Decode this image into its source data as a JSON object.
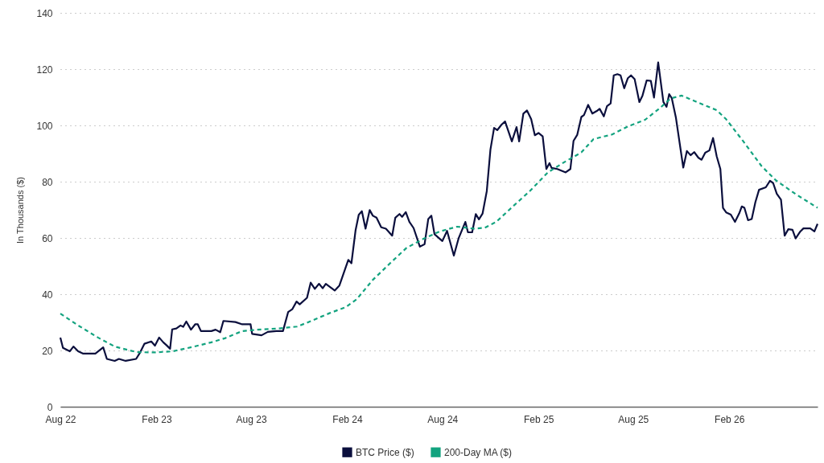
{
  "chart_data": {
    "type": "line",
    "ylabel": "In Thousands ($)",
    "legend": "bottom",
    "grid": "y",
    "xlim": [
      "2022-08-01",
      "2026-07-20"
    ],
    "xticks": [
      {
        "value": "2022-08-01",
        "label": "Aug 22"
      },
      {
        "value": "2023-02-01",
        "label": "Feb 23"
      },
      {
        "value": "2023-08-01",
        "label": "Aug 23"
      },
      {
        "value": "2024-02-01",
        "label": "Feb 24"
      },
      {
        "value": "2024-08-01",
        "label": "Aug 24"
      },
      {
        "value": "2025-02-01",
        "label": "Feb 25"
      },
      {
        "value": "2025-08-01",
        "label": "Aug 25"
      },
      {
        "value": "2026-02-01",
        "label": "Feb 26"
      }
    ],
    "ylim": [
      0,
      140
    ],
    "yticks": [
      0,
      20,
      40,
      60,
      80,
      100,
      120,
      140
    ],
    "series": [
      {
        "name": "BTC Price ($)",
        "color": "#0b0f3d",
        "line_style": "solid",
        "x": [
          "2022-08-01",
          "2022-08-06",
          "2022-08-19",
          "2022-08-26",
          "2022-09-04",
          "2022-09-13",
          "2022-10-07",
          "2022-10-22",
          "2022-10-29",
          "2022-11-13",
          "2022-11-21",
          "2022-12-04",
          "2022-12-24",
          "2023-01-01",
          "2023-01-09",
          "2023-01-22",
          "2023-01-29",
          "2023-02-06",
          "2023-02-14",
          "2023-02-20",
          "2023-02-27",
          "2023-03-03",
          "2023-03-11",
          "2023-03-19",
          "2023-03-24",
          "2023-03-30",
          "2023-04-08",
          "2023-04-16",
          "2023-04-21",
          "2023-04-27",
          "2023-05-17",
          "2023-05-25",
          "2023-06-03",
          "2023-06-09",
          "2023-07-02",
          "2023-07-15",
          "2023-07-31",
          "2023-08-03",
          "2023-08-21",
          "2023-09-02",
          "2023-09-18",
          "2023-10-01",
          "2023-10-11",
          "2023-10-19",
          "2023-10-27",
          "2023-11-02",
          "2023-11-16",
          "2023-11-23",
          "2023-12-01",
          "2023-12-09",
          "2023-12-16",
          "2023-12-22",
          "2024-01-08",
          "2024-01-17",
          "2024-02-03",
          "2024-02-09",
          "2024-02-17",
          "2024-02-23",
          "2024-02-29",
          "2024-03-07",
          "2024-03-15",
          "2024-03-21",
          "2024-03-28",
          "2024-04-06",
          "2024-04-15",
          "2024-04-27",
          "2024-05-03",
          "2024-05-11",
          "2024-05-16",
          "2024-05-23",
          "2024-05-30",
          "2024-06-07",
          "2024-06-19",
          "2024-06-28",
          "2024-07-05",
          "2024-07-11",
          "2024-07-17",
          "2024-08-01",
          "2024-08-10",
          "2024-08-23",
          "2024-09-01",
          "2024-09-14",
          "2024-09-19",
          "2024-09-27",
          "2024-10-04",
          "2024-10-10",
          "2024-10-17",
          "2024-10-25",
          "2024-11-01",
          "2024-11-08",
          "2024-11-14",
          "2024-11-22",
          "2024-11-29",
          "2024-12-12",
          "2024-12-21",
          "2024-12-26",
          "2025-01-03",
          "2025-01-10",
          "2025-01-18",
          "2025-01-25",
          "2025-02-01",
          "2025-02-09",
          "2025-02-16",
          "2025-02-22",
          "2025-02-26",
          "2025-03-09",
          "2025-03-25",
          "2025-04-03",
          "2025-04-09",
          "2025-04-16",
          "2025-04-24",
          "2025-04-29",
          "2025-05-07",
          "2025-05-15",
          "2025-05-25",
          "2025-05-29",
          "2025-06-06",
          "2025-06-12",
          "2025-06-19",
          "2025-06-25",
          "2025-07-02",
          "2025-07-08",
          "2025-07-15",
          "2025-07-22",
          "2025-07-28",
          "2025-08-04",
          "2025-08-13",
          "2025-08-19",
          "2025-08-27",
          "2025-09-04",
          "2025-09-10",
          "2025-09-18",
          "2025-09-28",
          "2025-10-04",
          "2025-10-09",
          "2025-10-14",
          "2025-10-22",
          "2025-11-05",
          "2025-11-12",
          "2025-11-19",
          "2025-11-26",
          "2025-12-04",
          "2025-12-10",
          "2025-12-17",
          "2025-12-25",
          "2026-01-01",
          "2026-01-08",
          "2026-01-15",
          "2026-01-20",
          "2026-01-26",
          "2026-02-04",
          "2026-02-12",
          "2026-02-20",
          "2026-02-25",
          "2026-03-02",
          "2026-03-09",
          "2026-03-16",
          "2026-03-23",
          "2026-03-30",
          "2026-04-12",
          "2026-04-20",
          "2026-04-26",
          "2026-05-03",
          "2026-05-11",
          "2026-05-18",
          "2026-05-25",
          "2026-06-02",
          "2026-06-08",
          "2026-06-17",
          "2026-06-23",
          "2026-07-06",
          "2026-07-14",
          "2026-07-20"
        ],
        "values": [
          24.6,
          20.9,
          19.7,
          21.4,
          19.7,
          18.9,
          18.9,
          21.1,
          17,
          16.3,
          17,
          16.3,
          17,
          19.4,
          22.4,
          23.2,
          21.7,
          24.6,
          22.9,
          21.9,
          20.6,
          27.5,
          27.8,
          28.9,
          28.4,
          30.3,
          27.4,
          29.3,
          29.3,
          26.9,
          26.9,
          27.4,
          26.5,
          30.5,
          30.1,
          29.3,
          29.3,
          25.9,
          25.4,
          26.6,
          26.9,
          26.9,
          33.7,
          34.7,
          37.4,
          36.4,
          38.7,
          44.1,
          41.9,
          43.7,
          42.1,
          43.7,
          41.3,
          43.1,
          52.2,
          51,
          62.8,
          68.2,
          69.5,
          63.3,
          69.9,
          67.9,
          67.2,
          63.8,
          63.3,
          60.8,
          67.2,
          68.5,
          67.5,
          69.2,
          65.7,
          63.5,
          56.9,
          57.8,
          66.7,
          67.9,
          61.3,
          58.9,
          62.5,
          53.7,
          59.8,
          65.7,
          62,
          62,
          68.5,
          66.6,
          68.7,
          76.6,
          91.4,
          99.1,
          98.3,
          100.2,
          101.4,
          94.3,
          99.4,
          94.3,
          104.2,
          105.3,
          102.2,
          96.5,
          97.3,
          96.1,
          84.5,
          86.6,
          84.9,
          84.5,
          83.3,
          84.5,
          94.5,
          96.6,
          103,
          103.7,
          107.3,
          104.2,
          105.3,
          105.9,
          103.2,
          106.8,
          107.8,
          117.8,
          118.2,
          117.8,
          113.2,
          116.8,
          117.8,
          116.4,
          108.3,
          110.6,
          116,
          115.8,
          109.9,
          122.4,
          108.3,
          106.6,
          111.1,
          109.7,
          102.7,
          85,
          90.9,
          89.4,
          90.5,
          88.5,
          87.8,
          90.3,
          91.1,
          95.5,
          89,
          84.5,
          70.7,
          69.1,
          68.3,
          65.7,
          68.7,
          71.2,
          70.7,
          66.3,
          66.7,
          72.7,
          77.1,
          78,
          80.3,
          79.5,
          75.7,
          73.6,
          60.8,
          63.1,
          62.9,
          59.8,
          62.3,
          63.4,
          63.4,
          62.3,
          65
        ]
      },
      {
        "name": "200-Day MA ($)",
        "color": "#13a37f",
        "line_style": "dashed",
        "x": [
          "2022-08-01",
          "2022-09-05",
          "2022-10-12",
          "2022-11-13",
          "2022-12-25",
          "2023-01-27",
          "2023-03-04",
          "2023-04-10",
          "2023-05-17",
          "2023-06-13",
          "2023-07-15",
          "2023-08-21",
          "2023-09-23",
          "2023-10-28",
          "2023-11-15",
          "2023-12-27",
          "2024-01-29",
          "2024-02-19",
          "2024-03-21",
          "2024-04-23",
          "2024-05-24",
          "2024-06-26",
          "2024-07-27",
          "2024-08-29",
          "2024-09-30",
          "2024-10-21",
          "2024-11-12",
          "2024-12-14",
          "2025-01-15",
          "2025-02-19",
          "2025-03-22",
          "2025-04-24",
          "2025-05-17",
          "2025-06-22",
          "2025-07-23",
          "2025-08-24",
          "2025-09-21",
          "2025-10-12",
          "2025-11-02",
          "2025-12-04",
          "2026-01-08",
          "2026-01-26",
          "2026-02-28",
          "2026-04-04",
          "2026-05-01",
          "2026-06-08",
          "2026-07-20"
        ],
        "values": [
          33.1,
          28.8,
          24.6,
          21.4,
          19.4,
          19.3,
          19.7,
          21.2,
          22.9,
          24.4,
          26.9,
          27.5,
          27.8,
          28.5,
          29.8,
          33.1,
          35.4,
          38.2,
          45.1,
          51,
          56.4,
          59.7,
          62.3,
          64,
          63.3,
          63.6,
          65.7,
          71.2,
          76.6,
          83.3,
          86.9,
          90.4,
          95.1,
          96.8,
          99.7,
          102,
          106.1,
          109.6,
          110.6,
          108.1,
          105.4,
          102.2,
          94.3,
          85.5,
          80.5,
          75.6,
          70.7
        ]
      }
    ]
  }
}
